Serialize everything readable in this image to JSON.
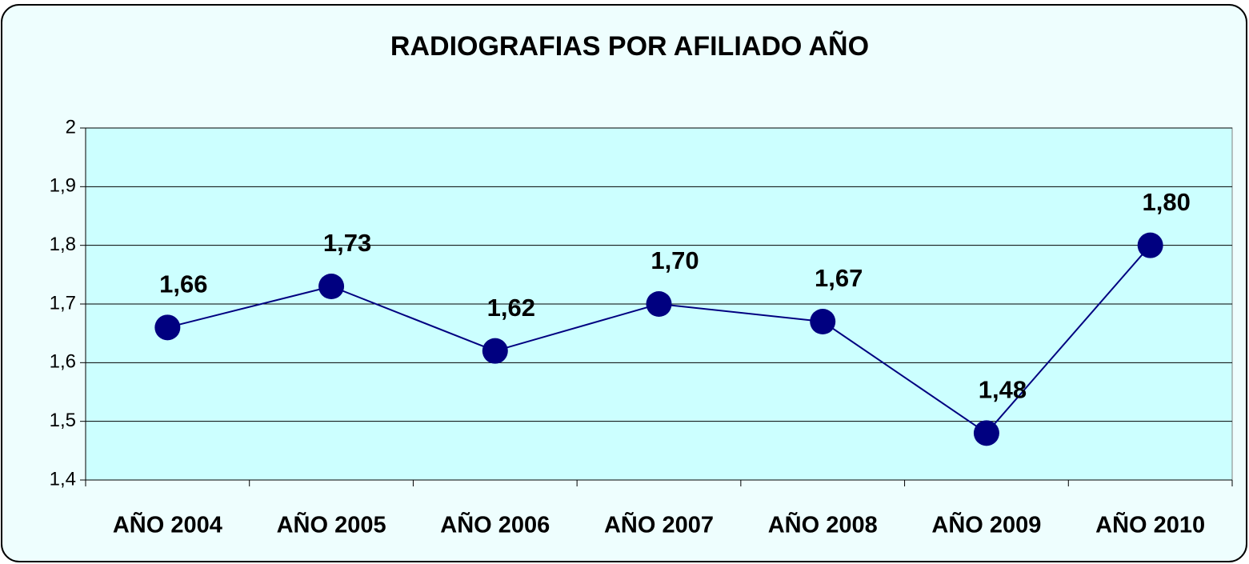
{
  "chart_data": {
    "type": "line",
    "title": "RADIOGRAFIAS POR AFILIADO AÑO",
    "categories": [
      "AÑO 2004",
      "AÑO 2005",
      "AÑO 2006",
      "AÑO 2007",
      "AÑO 2008",
      "AÑO 2009",
      "AÑO 2010"
    ],
    "series": [
      {
        "color": "#000080",
        "values": [
          1.66,
          1.73,
          1.62,
          1.7,
          1.67,
          1.48,
          1.8
        ],
        "value_labels": [
          "1,66",
          "1,73",
          "1,62",
          "1,70",
          "1,67",
          "1,48",
          "1,80"
        ]
      }
    ],
    "ylim": [
      1.4,
      2
    ],
    "yticks": [
      {
        "value": 1.4,
        "label": "1,4"
      },
      {
        "value": 1.5,
        "label": "1,5"
      },
      {
        "value": 1.6,
        "label": "1,6"
      },
      {
        "value": 1.7,
        "label": "1,7"
      },
      {
        "value": 1.8,
        "label": "1,8"
      },
      {
        "value": 1.9,
        "label": "1,9"
      },
      2
    ],
    "grid": true
  }
}
